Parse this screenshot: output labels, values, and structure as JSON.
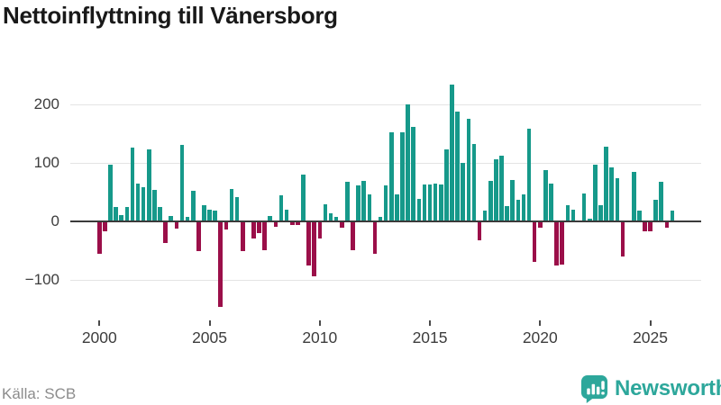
{
  "title": "Nettoinflyttning till Vänersborg",
  "source": "Källa: SCB",
  "brand": {
    "name": "Newsworthy",
    "icon": "newsworthy-speech-bubble-bar-chart-icon",
    "color": "#2da79b"
  },
  "chart_data": {
    "type": "bar",
    "title": "Nettoinflyttning till Vänersborg",
    "frequency": "quarterly",
    "x_start": "2000-Q1",
    "x_end": "2026-Q1",
    "values": [
      -54,
      -16,
      97,
      25,
      11,
      25,
      126,
      65,
      58,
      123,
      54,
      24,
      -35,
      9,
      -11,
      131,
      8,
      52,
      -49,
      27,
      20,
      18,
      -145,
      -13,
      56,
      42,
      -49,
      0,
      -27,
      -19,
      -47,
      9,
      -7,
      45,
      20,
      -5,
      -4,
      80,
      -74,
      -93,
      -27,
      29,
      14,
      8,
      -9,
      68,
      -48,
      61,
      69,
      46,
      -54,
      8,
      61,
      153,
      46,
      153,
      200,
      162,
      39,
      63,
      63,
      64,
      63,
      123,
      234,
      188,
      100,
      176,
      133,
      -31,
      19,
      69,
      106,
      113,
      26,
      71,
      37,
      46,
      158,
      -67,
      -9,
      88,
      65,
      -74,
      -73,
      28,
      20,
      0,
      48,
      5,
      97,
      28,
      128,
      92,
      74,
      -59,
      0,
      85,
      18,
      -15,
      -15,
      37,
      68,
      -9,
      18
    ],
    "x_tick_labels": [
      "2000",
      "2005",
      "2010",
      "2015",
      "2020",
      "2025"
    ],
    "y_tick_values": [
      200,
      100,
      0,
      -100
    ],
    "y_tick_labels": [
      "200",
      "100",
      "0",
      "−100"
    ],
    "ylim": [
      -160,
      250
    ],
    "grid": "horizontal",
    "legend": "none",
    "positive_color": "#16998a",
    "negative_color": "#9b0f49"
  }
}
